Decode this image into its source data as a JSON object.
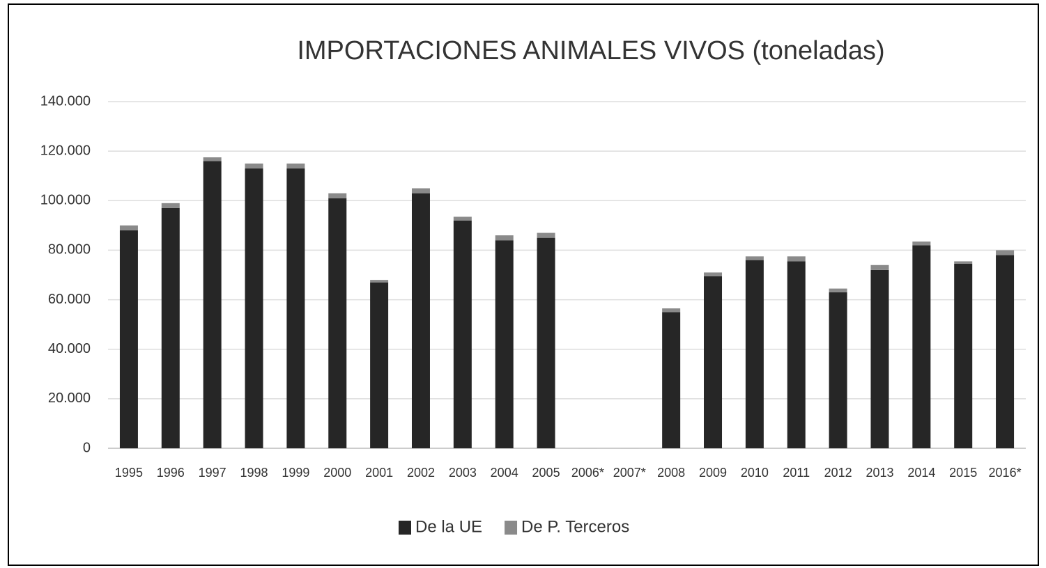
{
  "chart_data": {
    "type": "stacked_bar",
    "title": "IMPORTACIONES ANIMALES VIVOS (toneladas)",
    "categories": [
      "1995",
      "1996",
      "1997",
      "1998",
      "1999",
      "2000",
      "2001",
      "2002",
      "2003",
      "2004",
      "2005",
      "2006*",
      "2007*",
      "2008",
      "2009",
      "2010",
      "2011",
      "2012",
      "2013",
      "2014",
      "2015",
      "2016*"
    ],
    "series": [
      {
        "name": "De la UE",
        "color": "#262626",
        "values": [
          88000,
          97000,
          116000,
          113000,
          113000,
          101000,
          67000,
          103000,
          92000,
          84000,
          85000,
          0,
          0,
          55000,
          69500,
          76000,
          75500,
          63000,
          72000,
          82000,
          74500,
          78000
        ]
      },
      {
        "name": "De P. Terceros",
        "color": "#8a8a8a",
        "values": [
          2000,
          2000,
          1500,
          2000,
          2000,
          2000,
          1000,
          2000,
          1500,
          2000,
          2000,
          0,
          0,
          1500,
          1500,
          1500,
          2000,
          1500,
          2000,
          1500,
          1000,
          2000
        ]
      }
    ],
    "ylim": [
      0,
      140000
    ],
    "yticks": [
      0,
      {
        "value": 20000,
        "label": "20.000"
      },
      {
        "value": 40000,
        "label": "40.000"
      },
      {
        "value": 60000,
        "label": "60.000"
      },
      {
        "value": 80000,
        "label": "80.000"
      },
      {
        "value": 100000,
        "label": "100.000"
      },
      {
        "value": 120000,
        "label": "120.000"
      },
      {
        "value": 140000,
        "label": "140.000"
      }
    ],
    "grid": true,
    "legend": "bottom"
  }
}
